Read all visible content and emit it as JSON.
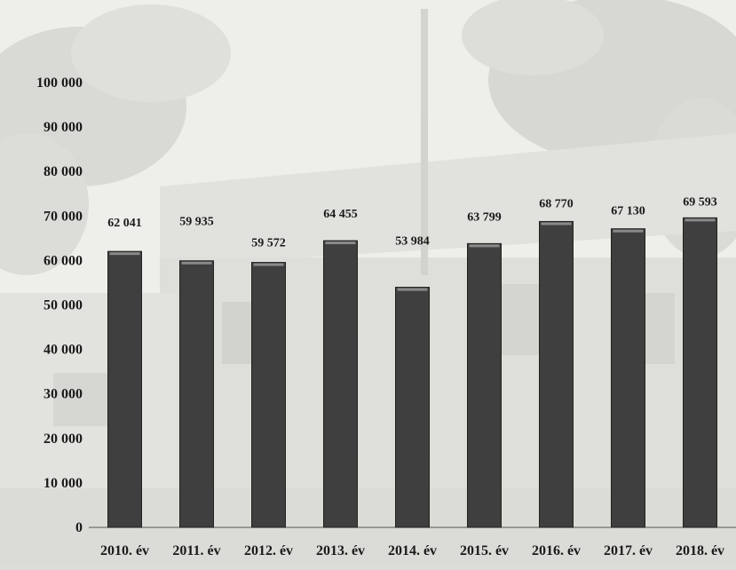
{
  "chart_data": {
    "type": "bar",
    "categories": [
      "2010. év",
      "2011. év",
      "2012. év",
      "2013. év",
      "2014. év",
      "2015. év",
      "2016. év",
      "2017. év",
      "2018. év"
    ],
    "values": [
      62041,
      59935,
      59572,
      64455,
      53984,
      63799,
      68770,
      67130,
      69593
    ],
    "data_labels": [
      "62 041",
      "59 935",
      "59 572",
      "64 455",
      "53 984",
      "63 799",
      "68 770",
      "67 130",
      "69 593"
    ],
    "y_ticks": [
      0,
      10000,
      20000,
      30000,
      40000,
      50000,
      60000,
      70000,
      80000,
      90000,
      100000
    ],
    "y_tick_labels": [
      "0",
      "10 000",
      "20 000",
      "30 000",
      "40 000",
      "50 000",
      "60 000",
      "70 000",
      "80 000",
      "90 000",
      "100 000"
    ],
    "ylim": [
      0,
      100000
    ],
    "title": "",
    "xlabel": "",
    "ylabel": "",
    "grid": false,
    "legend": "none",
    "bar_color": "#3f3f3f"
  }
}
